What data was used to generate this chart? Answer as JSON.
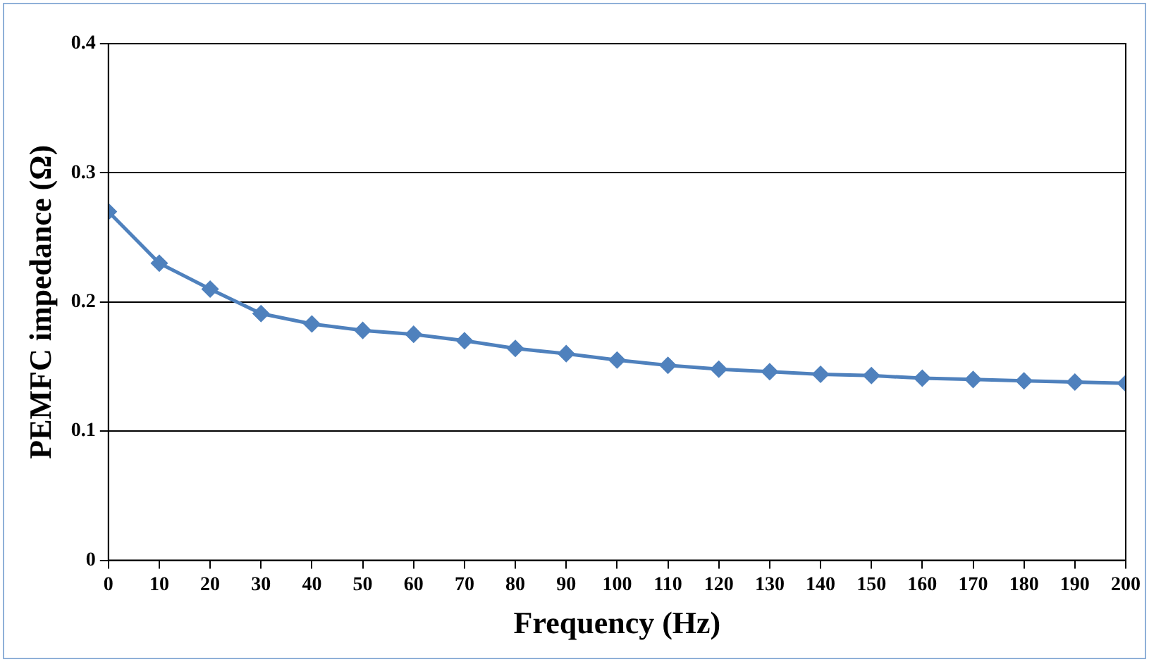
{
  "chart_data": {
    "type": "line",
    "xlabel": "Frequency (Hz)",
    "ylabel": "PEMFC impedance (Ω)",
    "x": [
      0,
      10,
      20,
      30,
      40,
      50,
      60,
      70,
      80,
      90,
      100,
      110,
      120,
      130,
      140,
      150,
      160,
      170,
      180,
      190,
      200
    ],
    "series": [
      {
        "color": "#4f81bd",
        "values": [
          0.27,
          0.23,
          0.21,
          0.191,
          0.183,
          0.178,
          0.175,
          0.17,
          0.164,
          0.16,
          0.155,
          0.151,
          0.148,
          0.146,
          0.144,
          0.143,
          0.141,
          0.14,
          0.139,
          0.138,
          0.137
        ]
      }
    ],
    "xlim": [
      0,
      200
    ],
    "xticks": [
      0,
      10,
      20,
      30,
      40,
      50,
      60,
      70,
      80,
      90,
      100,
      110,
      120,
      130,
      140,
      150,
      160,
      170,
      180,
      190,
      200
    ],
    "ylim": [
      0,
      0.4
    ],
    "yticks": [
      0,
      0.1,
      0.2,
      0.3,
      0.4
    ],
    "grid": "y",
    "legend": false,
    "marker": "diamond",
    "line_style": "solid"
  }
}
